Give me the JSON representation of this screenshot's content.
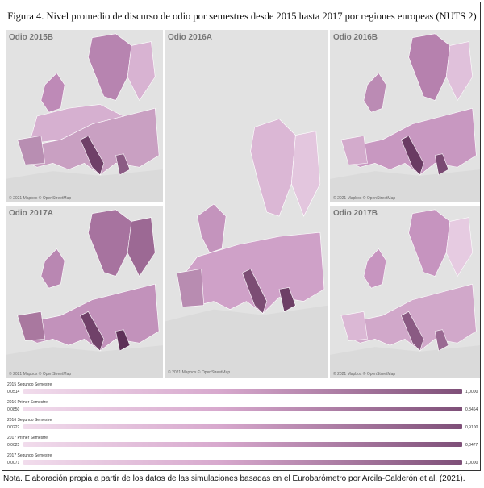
{
  "figure": {
    "title": "Figura 4. Nivel promedio de discurso de odio por semestres desde 2015 hasta 2017 por regiones europeas (NUTS 2)",
    "note": "Nota. Elaboración propia a partir de los datos de las simulaciones basadas en el Eurobarómetro por Arcila-Calderón et al. (2021)."
  },
  "map_credit": "© 2021 Mapbox © OpenStreetMap",
  "panels": [
    {
      "label": "Odio 2015B"
    },
    {
      "label": "Odio 2016A"
    },
    {
      "label": "Odio 2016B"
    },
    {
      "label": "Odio 2017A"
    },
    {
      "label": "Odio 2017B"
    }
  ],
  "legends": [
    {
      "label": "2015 Segundo Semestre",
      "min": "0,0514",
      "max": "1,0000"
    },
    {
      "label": "2016 Primer Semestre",
      "min": "0,0850",
      "max": "0,8464"
    },
    {
      "label": "2016 Segundo Semestre",
      "min": "0,0222",
      "max": "0,9100"
    },
    {
      "label": "2017 Primer Semestre",
      "min": "0,0025",
      "max": "0,8477"
    },
    {
      "label": "2017 Segundo Semestre",
      "min": "0,0071",
      "max": "1,0000"
    }
  ],
  "colors": {
    "low": "#f1dcec",
    "mid": "#d7a8cd",
    "high": "#7e4f78",
    "background": "#e6e6e6"
  }
}
